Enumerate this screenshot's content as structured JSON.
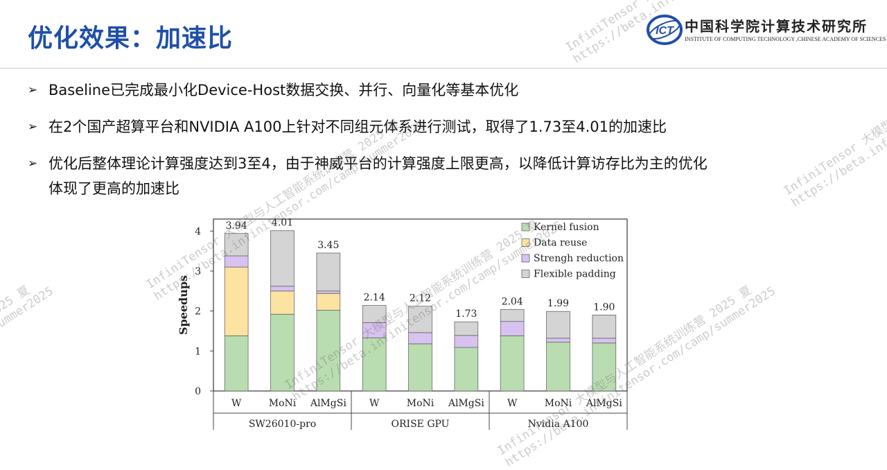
{
  "header": {
    "title": "优化效果：加速比",
    "logo": {
      "mark": "ICT",
      "name_cn": "中国科学院计算技术研究所",
      "name_en": "INSTITUTE OF COMPUTING TECHNOLOGY ,CHINESE ACADEMY OF SCIENCES"
    }
  },
  "bullets": [
    {
      "text": "Baseline已完成最小化Device-Host数据交换、并行、向量化等基本优化"
    },
    {
      "text": "在2个国产超算平台和NVIDIA A100上针对不同组元体系进行测试，取得了1.73至4.01的加速比"
    },
    {
      "text": "优化后整体理论计算强度达到3至4，由于神威平台的计算强度上限更高，以降低计算访存比为主的优化",
      "text2": "体现了更高的加速比"
    }
  ],
  "watermark": {
    "line1": "InfiniTensor 大模型与人工智能系统训练营 2025 夏",
    "line2": "https://beta.infinitensor.com/camp/summer2025"
  },
  "chart_data": {
    "type": "bar",
    "stacked": true,
    "ylabel": "Speedups",
    "ylim": [
      0,
      4.3
    ],
    "yticks": [
      0,
      1,
      2,
      3,
      4
    ],
    "categories": [
      "W",
      "MoNi",
      "AlMgSi",
      "W",
      "MoNi",
      "AlMgSi",
      "W",
      "MoNi",
      "AlMgSi"
    ],
    "groups": [
      {
        "name": "SW26010-pro",
        "size": 3
      },
      {
        "name": "ORISE GPU",
        "size": 3
      },
      {
        "name": "Nvidia A100",
        "size": 3
      }
    ],
    "totals": [
      "3.94",
      "4.01",
      "3.45",
      "2.14",
      "2.12",
      "1.73",
      "2.04",
      "1.99",
      "1.90"
    ],
    "series": [
      {
        "name": "Kernel fusion",
        "color": "#b9ddb0",
        "values": [
          1.38,
          1.92,
          2.02,
          1.33,
          1.18,
          1.09,
          1.38,
          1.22,
          1.2
        ]
      },
      {
        "name": "Data reuse",
        "color": "#fde3a1",
        "values": [
          1.72,
          0.58,
          0.42,
          0.0,
          0.0,
          0.0,
          0.0,
          0.0,
          0.0
        ]
      },
      {
        "name": "Strengh reduction",
        "color": "#d8c2f0",
        "values": [
          0.28,
          0.12,
          0.06,
          0.38,
          0.28,
          0.3,
          0.36,
          0.1,
          0.12
        ]
      },
      {
        "name": "Flexible padding",
        "color": "#d4d4d4",
        "values": [
          0.56,
          1.39,
          0.95,
          0.43,
          0.66,
          0.34,
          0.3,
          0.67,
          0.58
        ]
      }
    ],
    "legend_position": "top-right",
    "grid": false
  }
}
